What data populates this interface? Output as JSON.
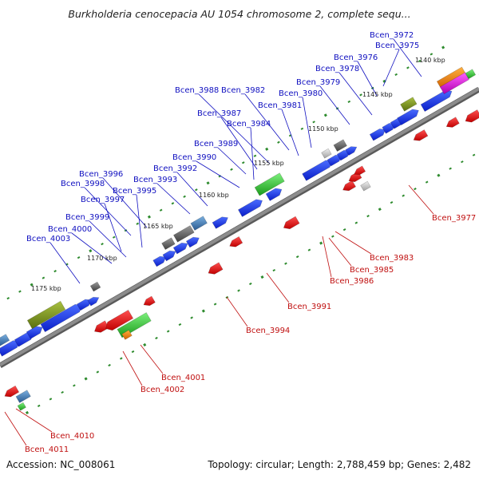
{
  "header": {
    "title": "Burkholderia cenocepacia AU 1054 chromosome 2, complete sequ..."
  },
  "footer": {
    "accession": "Accession: NC_008061",
    "summary": "Topology: circular; Length: 2,788,459 bp; Genes: 2,482"
  },
  "colors": {
    "backbone": "#8c8c8c",
    "tick": "#2e8b2e",
    "label_forward": "#1010c0",
    "label_reverse": "#c01010",
    "leader": "#1010c0",
    "leader_reverse": "#c01010"
  },
  "ruler": [
    {
      "label": "1140 kbp"
    },
    {
      "label": "1145 kbp"
    },
    {
      "label": "1150 kbp"
    },
    {
      "label": "1155 kbp"
    },
    {
      "label": "1160 kbp"
    },
    {
      "label": "1165 kbp"
    },
    {
      "label": "1170 kbp"
    },
    {
      "label": "1175 kbp"
    }
  ],
  "genes_forward": [
    {
      "name": "Bcen_3972"
    },
    {
      "name": "Bcen_3975"
    },
    {
      "name": "Bcen_3976"
    },
    {
      "name": "Bcen_3978"
    },
    {
      "name": "Bcen_3979"
    },
    {
      "name": "Bcen_3980"
    },
    {
      "name": "Bcen_3981"
    },
    {
      "name": "Bcen_3982"
    },
    {
      "name": "Bcen_3988"
    },
    {
      "name": "Bcen_3987"
    },
    {
      "name": "Bcen_3984"
    },
    {
      "name": "Bcen_3989"
    },
    {
      "name": "Bcen_3990"
    },
    {
      "name": "Bcen_3992"
    },
    {
      "name": "Bcen_3993"
    },
    {
      "name": "Bcen_3996"
    },
    {
      "name": "Bcen_3998"
    },
    {
      "name": "Bcen_3995"
    },
    {
      "name": "Bcen_3997"
    },
    {
      "name": "Bcen_3999"
    },
    {
      "name": "Bcen_4000"
    },
    {
      "name": "Bcen_4003"
    }
  ],
  "genes_reverse": [
    {
      "name": "Bcen_3977"
    },
    {
      "name": "Bcen_3983"
    },
    {
      "name": "Bcen_3985"
    },
    {
      "name": "Bcen_3986"
    },
    {
      "name": "Bcen_3991"
    },
    {
      "name": "Bcen_3994"
    },
    {
      "name": "Bcen_4001"
    },
    {
      "name": "Bcen_4002"
    },
    {
      "name": "Bcen_4010"
    },
    {
      "name": "Bcen_4011"
    }
  ]
}
